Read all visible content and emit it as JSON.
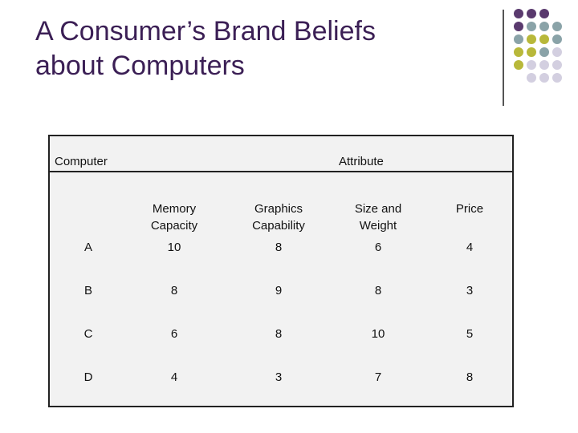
{
  "slide": {
    "title_line1": "A Consumer’s Brand Beliefs",
    "title_line2": "about Computers"
  },
  "table": {
    "computer_header": "Computer",
    "attribute_header": "Attribute",
    "columns": [
      {
        "line1": "Memory",
        "line2": "Capacity"
      },
      {
        "line1": "Graphics",
        "line2": "Capability"
      },
      {
        "line1": "Size and",
        "line2": "Weight"
      },
      {
        "line1": "",
        "line2": "Price"
      }
    ],
    "rows": [
      {
        "name": "A",
        "values": [
          "10",
          "8",
          "6",
          "4"
        ]
      },
      {
        "name": "B",
        "values": [
          "8",
          "9",
          "8",
          "3"
        ]
      },
      {
        "name": "C",
        "values": [
          "6",
          "8",
          "10",
          "5"
        ]
      },
      {
        "name": "D",
        "values": [
          "4",
          "3",
          "7",
          "8"
        ]
      }
    ]
  },
  "decor": {
    "colors": {
      "purple": "#5a3a6e",
      "teal": "#8aa3a8",
      "olive": "#b8b83a",
      "lavender": "#d3cfe0",
      "title": "#3b1f55"
    }
  }
}
